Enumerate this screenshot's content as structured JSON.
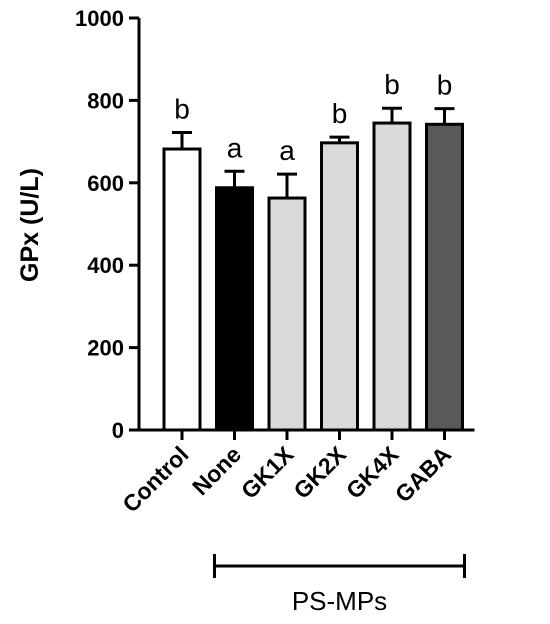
{
  "chart_data": {
    "type": "bar",
    "ylabel": "GPx (U/L)",
    "xlabel": "",
    "ylim": [
      0,
      1000
    ],
    "yticks": [
      0,
      200,
      400,
      600,
      800,
      1000
    ],
    "categories": [
      "Control",
      "None",
      "GK1X",
      "GK2X",
      "GK4X",
      "GABA"
    ],
    "values": [
      682,
      588,
      563,
      697,
      745,
      742
    ],
    "error_upper": [
      40,
      40,
      58,
      14,
      36,
      38
    ],
    "significance_letters": [
      "b",
      "a",
      "a",
      "b",
      "b",
      "b"
    ],
    "bar_colors": [
      "#ffffff",
      "#000000",
      "#d9d9d9",
      "#d9d9d9",
      "#d9d9d9",
      "#595959"
    ],
    "group_bracket": {
      "label": "PS-MPs",
      "from_category": "None",
      "to_category": "GABA"
    },
    "grid": false,
    "legend": "none"
  }
}
